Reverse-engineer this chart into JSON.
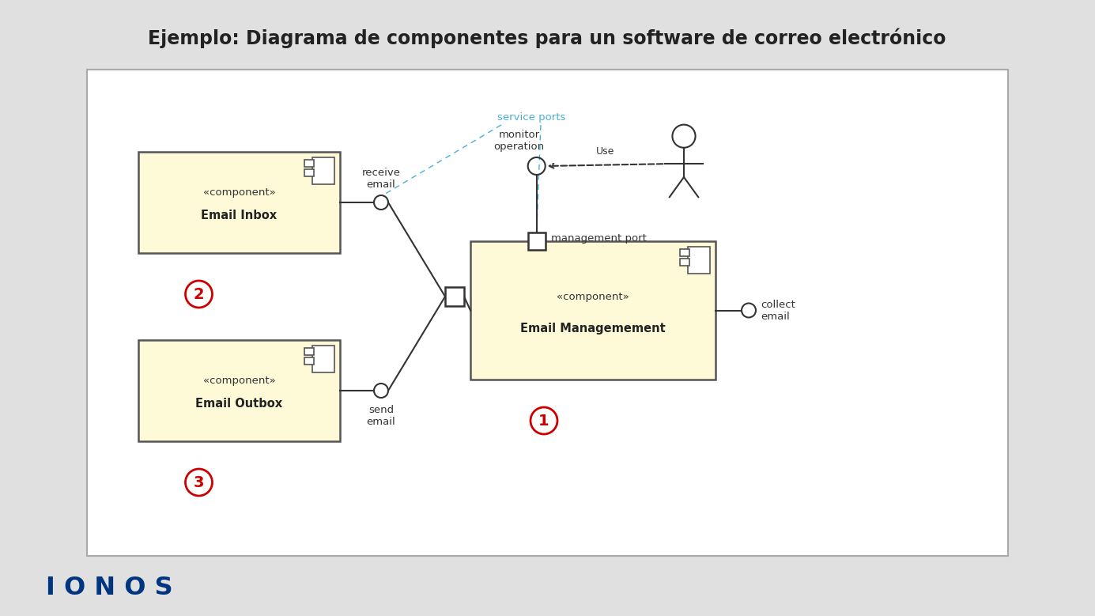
{
  "title": "Ejemplo: Diagrama de componentes para un software de correo electrónico",
  "bg_color": "#e0e0e0",
  "diagram_bg": "#ffffff",
  "component_fill": "#fef9d7",
  "component_edge": "#555555",
  "title_fontsize": 17,
  "ionos_color": "#003580",
  "service_ports_color": "#4ab0d9",
  "red_circle_color": "#cc0000",
  "labels": {
    "inbox_stereo": "«component»",
    "inbox_name": "Email Inbox",
    "outbox_stereo": "«component»",
    "outbox_name": "Email Outbox",
    "mgmt_stereo": "«component»",
    "mgmt_name": "Email Managemement",
    "receive_email": "receive\nemail",
    "send_email": "send\nemail",
    "collect_email": "collect\nemail",
    "service_ports": "service ports",
    "monitor_operation": "monitor\noperation",
    "management_port": "management port",
    "use_label": "Use",
    "num1": "1",
    "num2": "2",
    "num3": "3"
  }
}
